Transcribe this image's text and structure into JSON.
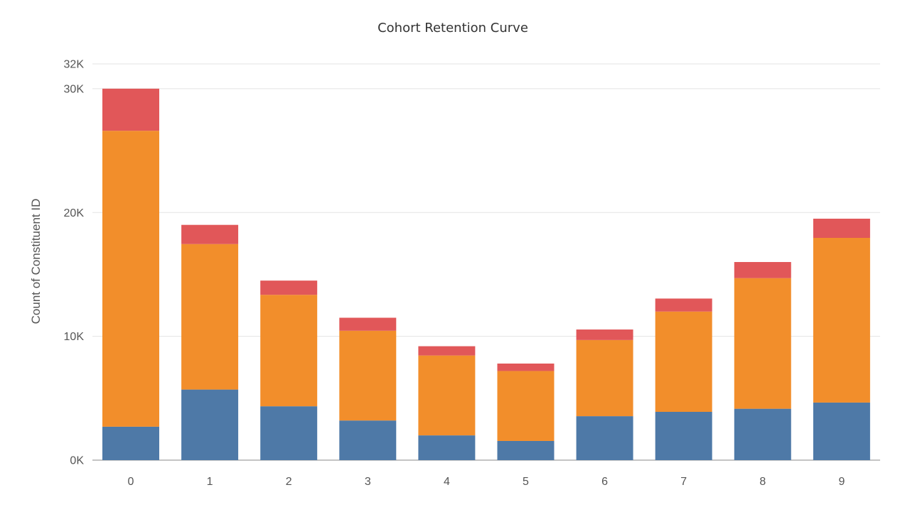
{
  "chart_data": {
    "type": "bar",
    "stacked": true,
    "title": "Cohort Retention Curve",
    "xlabel": "",
    "ylabel": "Count of Constituent ID",
    "ylim": [
      0,
      32000
    ],
    "yticks": [
      {
        "value": 0,
        "label": "0K"
      },
      {
        "value": 10000,
        "label": "10K"
      },
      {
        "value": 20000,
        "label": "20K"
      },
      {
        "value": 30000,
        "label": "30K"
      },
      {
        "value": 32000,
        "label": "32K"
      }
    ],
    "grid": true,
    "legend": "none",
    "categories": [
      "0",
      "1",
      "2",
      "3",
      "4",
      "5",
      "6",
      "7",
      "8",
      "9"
    ],
    "series": [
      {
        "color": "#4e79a7",
        "values": [
          2700,
          5700,
          4350,
          3200,
          2000,
          1550,
          3550,
          3900,
          4150,
          4650
        ]
      },
      {
        "color": "#f28e2b",
        "values": [
          23900,
          11750,
          9000,
          7250,
          6450,
          5650,
          6150,
          8100,
          10550,
          13300
        ]
      },
      {
        "color": "#e15759",
        "values": [
          3400,
          1550,
          1150,
          1050,
          750,
          600,
          850,
          1050,
          1300,
          1550
        ]
      }
    ]
  }
}
